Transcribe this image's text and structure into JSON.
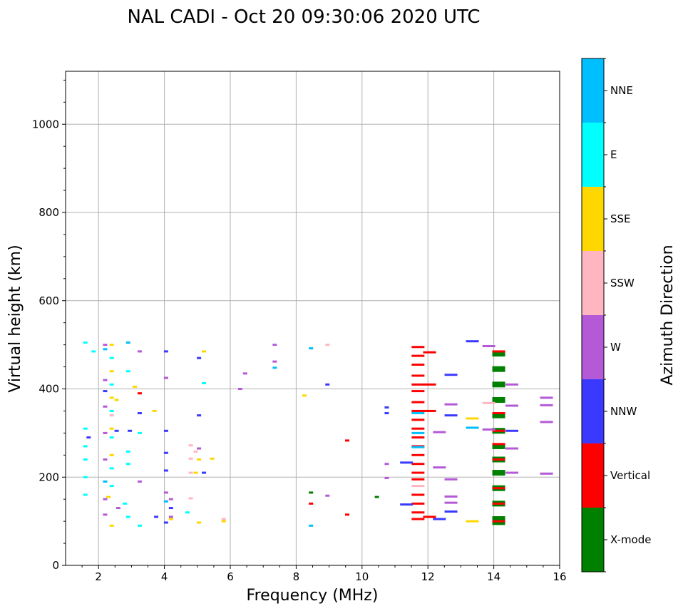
{
  "chart_data": {
    "type": "scatter",
    "title": "NAL CADI - Oct 20 09:30:06 2020 UTC",
    "xlabel": "Frequency (MHz)",
    "ylabel": "Virtual height (km)",
    "xlim": [
      1,
      16
    ],
    "ylim": [
      0,
      1120
    ],
    "xticks": [
      2,
      4,
      6,
      8,
      10,
      12,
      14,
      16
    ],
    "yticks": [
      0,
      200,
      400,
      600,
      800,
      1000
    ],
    "grid": true,
    "colorbar": {
      "label": "Azimuth Direction",
      "categories": [
        {
          "name": "X-mode",
          "color": "#008000"
        },
        {
          "name": "Vertical",
          "color": "#ff0000"
        },
        {
          "name": "NNW",
          "color": "#3a3aff"
        },
        {
          "name": "W",
          "color": "#b45ad6"
        },
        {
          "name": "SSW",
          "color": "#ffb6c1"
        },
        {
          "name": "SSE",
          "color": "#ffd700"
        },
        {
          "name": "E",
          "color": "#00ffff"
        },
        {
          "name": "NNE",
          "color": "#00bfff"
        }
      ]
    },
    "series": [
      {
        "name": "X-mode",
        "points": [
          [
            8.45,
            165
          ],
          [
            10.45,
            155
          ],
          [
            14.15,
            98
          ],
          [
            14.15,
            105
          ],
          [
            14.15,
            140
          ],
          [
            14.15,
            175
          ],
          [
            14.15,
            210
          ],
          [
            14.15,
            240
          ],
          [
            14.15,
            270
          ],
          [
            14.15,
            305
          ],
          [
            14.15,
            340
          ],
          [
            14.15,
            375
          ],
          [
            14.15,
            410
          ],
          [
            14.15,
            445
          ],
          [
            14.15,
            480
          ]
        ]
      },
      {
        "name": "Vertical",
        "points": [
          [
            3.25,
            390
          ],
          [
            8.45,
            140
          ],
          [
            9.55,
            115
          ],
          [
            9.55,
            283
          ],
          [
            11.7,
            105
          ],
          [
            11.7,
            120
          ],
          [
            11.7,
            140
          ],
          [
            11.7,
            160
          ],
          [
            11.7,
            195
          ],
          [
            11.7,
            210
          ],
          [
            11.7,
            230
          ],
          [
            11.7,
            250
          ],
          [
            11.7,
            270
          ],
          [
            11.7,
            290
          ],
          [
            11.7,
            310
          ],
          [
            11.7,
            330
          ],
          [
            11.7,
            350
          ],
          [
            11.7,
            370
          ],
          [
            11.7,
            395
          ],
          [
            11.7,
            410
          ],
          [
            11.7,
            430
          ],
          [
            11.7,
            455
          ],
          [
            11.7,
            475
          ],
          [
            11.7,
            495
          ],
          [
            12.05,
            110
          ],
          [
            12.05,
            350
          ],
          [
            12.05,
            410
          ],
          [
            12.05,
            483
          ],
          [
            14.15,
            100
          ],
          [
            14.15,
            140
          ],
          [
            14.15,
            175
          ],
          [
            14.15,
            240
          ],
          [
            14.15,
            275
          ],
          [
            14.15,
            305
          ],
          [
            14.15,
            345
          ],
          [
            14.15,
            485
          ]
        ]
      },
      {
        "name": "NNW",
        "points": [
          [
            1.7,
            290
          ],
          [
            2.2,
            395
          ],
          [
            2.55,
            305
          ],
          [
            2.95,
            305
          ],
          [
            3.25,
            345
          ],
          [
            3.75,
            110
          ],
          [
            4.05,
            97
          ],
          [
            4.05,
            215
          ],
          [
            4.05,
            255
          ],
          [
            4.05,
            305
          ],
          [
            4.05,
            485
          ],
          [
            4.2,
            130
          ],
          [
            5.05,
            340
          ],
          [
            5.05,
            470
          ],
          [
            5.2,
            210
          ],
          [
            8.95,
            410
          ],
          [
            10.75,
            345
          ],
          [
            10.75,
            358
          ],
          [
            11.35,
            138
          ],
          [
            11.35,
            233
          ],
          [
            12.35,
            105
          ],
          [
            12.7,
            122
          ],
          [
            12.7,
            340
          ],
          [
            12.7,
            432
          ],
          [
            13.35,
            508
          ],
          [
            14.55,
            305
          ]
        ]
      },
      {
        "name": "W",
        "points": [
          [
            2.2,
            115
          ],
          [
            2.2,
            150
          ],
          [
            2.2,
            240
          ],
          [
            2.2,
            300
          ],
          [
            2.2,
            360
          ],
          [
            2.2,
            420
          ],
          [
            2.2,
            500
          ],
          [
            2.6,
            130
          ],
          [
            3.25,
            190
          ],
          [
            3.25,
            485
          ],
          [
            4.05,
            165
          ],
          [
            4.05,
            425
          ],
          [
            4.2,
            110
          ],
          [
            4.2,
            150
          ],
          [
            5.05,
            265
          ],
          [
            6.3,
            400
          ],
          [
            6.45,
            435
          ],
          [
            7.35,
            500
          ],
          [
            7.35,
            462
          ],
          [
            8.95,
            158
          ],
          [
            10.75,
            198
          ],
          [
            10.75,
            230
          ],
          [
            12.35,
            222
          ],
          [
            12.35,
            302
          ],
          [
            12.7,
            142
          ],
          [
            12.7,
            156
          ],
          [
            12.7,
            195
          ],
          [
            12.7,
            365
          ],
          [
            13.85,
            308
          ],
          [
            13.85,
            497
          ],
          [
            14.55,
            210
          ],
          [
            14.55,
            265
          ],
          [
            14.55,
            362
          ],
          [
            14.55,
            410
          ],
          [
            15.6,
            208
          ],
          [
            15.6,
            325
          ],
          [
            15.6,
            363
          ],
          [
            15.6,
            380
          ]
        ]
      },
      {
        "name": "SSW",
        "points": [
          [
            2.4,
            340
          ],
          [
            4.8,
            152
          ],
          [
            4.8,
            210
          ],
          [
            4.8,
            242
          ],
          [
            4.8,
            272
          ],
          [
            4.95,
            258
          ],
          [
            5.8,
            105
          ],
          [
            8.95,
            500
          ],
          [
            11.7,
            180
          ],
          [
            13.85,
            368
          ]
        ]
      },
      {
        "name": "SSE",
        "points": [
          [
            2.3,
            155
          ],
          [
            2.4,
            90
          ],
          [
            2.4,
            250
          ],
          [
            2.4,
            310
          ],
          [
            2.4,
            380
          ],
          [
            2.4,
            440
          ],
          [
            2.4,
            500
          ],
          [
            2.55,
            375
          ],
          [
            3.1,
            405
          ],
          [
            3.7,
            350
          ],
          [
            4.2,
            105
          ],
          [
            4.95,
            210
          ],
          [
            5.05,
            97
          ],
          [
            5.05,
            240
          ],
          [
            5.2,
            485
          ],
          [
            5.45,
            242
          ],
          [
            5.8,
            100
          ],
          [
            8.25,
            385
          ],
          [
            13.35,
            100
          ],
          [
            13.35,
            333
          ]
        ]
      },
      {
        "name": "E",
        "points": [
          [
            1.6,
            160
          ],
          [
            1.6,
            200
          ],
          [
            1.6,
            240
          ],
          [
            1.6,
            270
          ],
          [
            1.6,
            310
          ],
          [
            1.6,
            505
          ],
          [
            1.85,
            485
          ],
          [
            2.4,
            180
          ],
          [
            2.4,
            220
          ],
          [
            2.4,
            290
          ],
          [
            2.4,
            350
          ],
          [
            2.4,
            410
          ],
          [
            2.4,
            470
          ],
          [
            2.8,
            140
          ],
          [
            2.9,
            110
          ],
          [
            2.9,
            230
          ],
          [
            2.9,
            258
          ],
          [
            2.9,
            440
          ],
          [
            3.25,
            90
          ],
          [
            3.25,
            300
          ],
          [
            4.7,
            120
          ],
          [
            5.2,
            413
          ]
        ]
      },
      {
        "name": "NNE",
        "points": [
          [
            2.2,
            190
          ],
          [
            2.2,
            490
          ],
          [
            2.9,
            505
          ],
          [
            4.05,
            145
          ],
          [
            7.35,
            448
          ],
          [
            8.45,
            90
          ],
          [
            8.45,
            492
          ],
          [
            11.7,
            268
          ],
          [
            11.7,
            300
          ],
          [
            11.7,
            345
          ],
          [
            13.35,
            312
          ]
        ]
      }
    ]
  }
}
